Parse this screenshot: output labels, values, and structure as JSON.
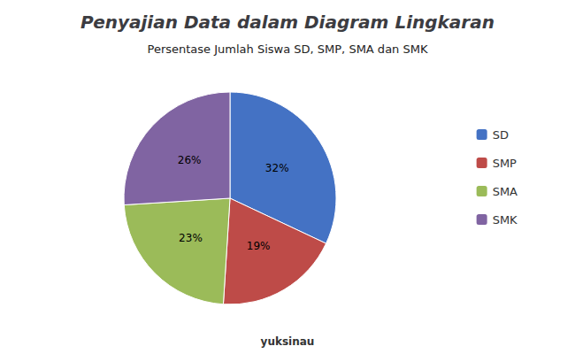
{
  "chart_data": {
    "type": "pie",
    "title": "Penyajian Data dalam Diagram Lingkaran",
    "subtitle": "Persentase Jumlah Siswa SD, SMP, SMA dan SMK",
    "annotations": [
      "yuksinau"
    ],
    "categories": [
      "SD",
      "SMP",
      "SMA",
      "SMK"
    ],
    "values": [
      32,
      19,
      23,
      26
    ],
    "value_labels": [
      "32%",
      "19%",
      "23%",
      "26%"
    ],
    "colors": [
      "#4472c4",
      "#be4b48",
      "#9bbb59",
      "#8064a2"
    ],
    "data_labels": true,
    "legend": "right"
  }
}
